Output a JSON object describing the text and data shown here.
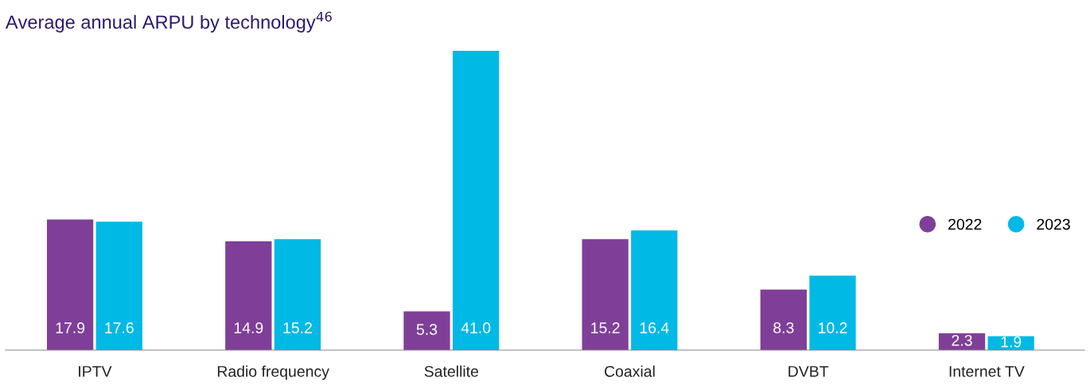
{
  "chart_data": {
    "type": "bar",
    "title": "Average annual ARPU by technology$^{46}$",
    "categories": [
      "IPTV",
      "Radio frequency",
      "Satellite",
      "Coaxial",
      "DVBT",
      "Internet TV"
    ],
    "series": [
      {
        "name": "2022",
        "color": "#7f3f98",
        "values": [
          17.9,
          14.9,
          5.3,
          15.2,
          8.3,
          2.3
        ],
        "value_labels": [
          "17.9",
          "14.9",
          "5.3",
          "15.2",
          "8.3",
          "2.3"
        ]
      },
      {
        "name": "2023",
        "color": "#00b9e4",
        "values": [
          17.6,
          15.2,
          41.0,
          16.4,
          10.2,
          1.9
        ],
        "value_labels": [
          "17.6",
          "15.2",
          "41.0",
          "16.4",
          "10.2",
          "1.9"
        ]
      }
    ],
    "legend": "right",
    "grid": false
  }
}
